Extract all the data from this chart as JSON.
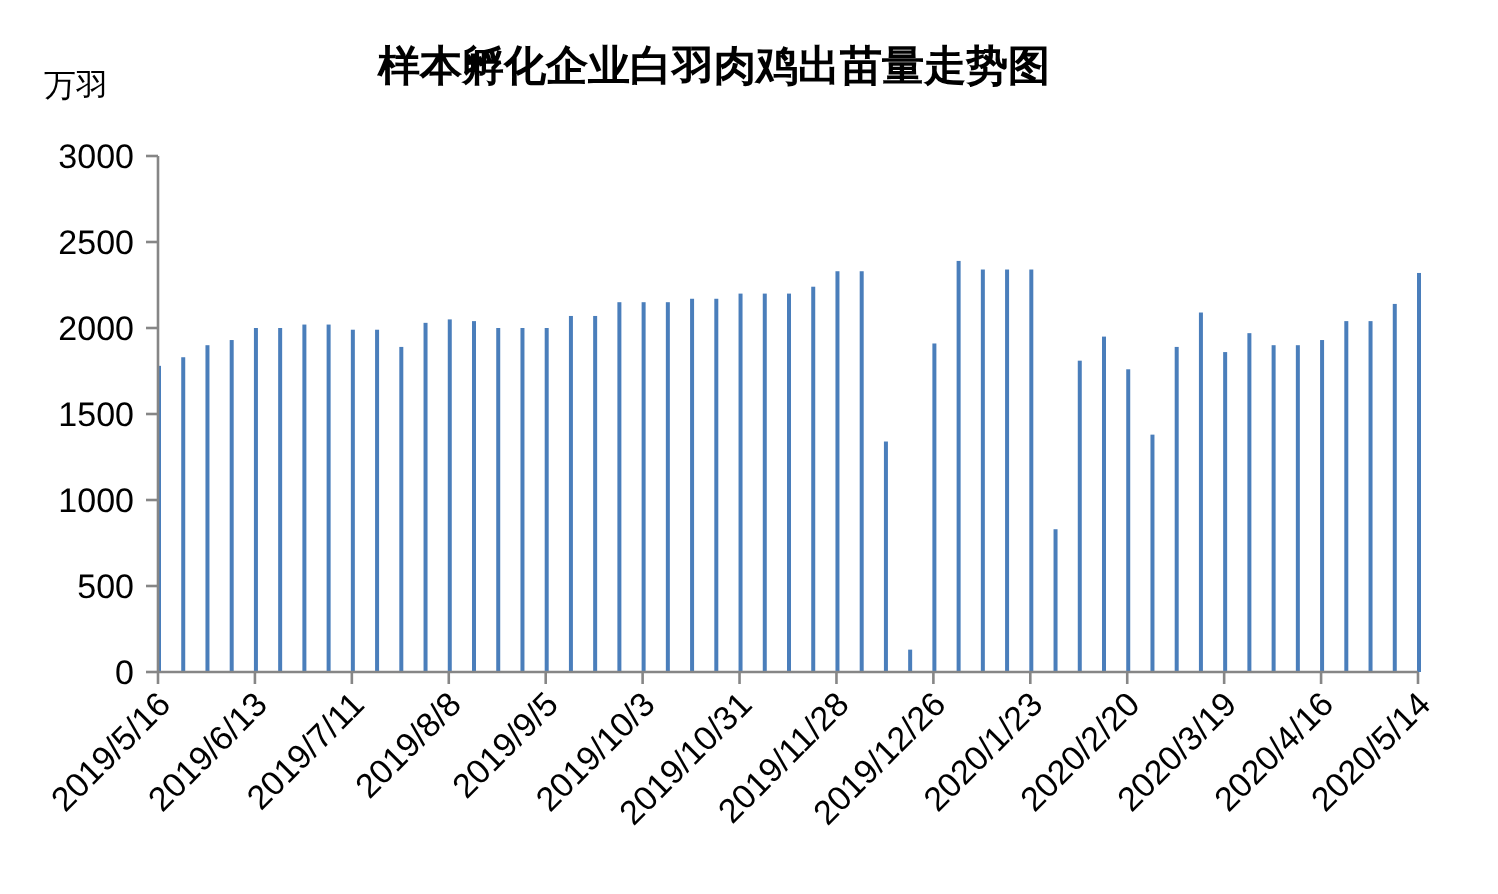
{
  "chart_data": {
    "type": "bar",
    "title": "样本孵化企业白羽肉鸡出苗量走势图",
    "ylabel": "万羽",
    "x": [
      "2019-05-16",
      "2019-05-23",
      "2019-05-30",
      "2019-06-06",
      "2019-06-13",
      "2019-06-20",
      "2019-06-27",
      "2019-07-04",
      "2019-07-11",
      "2019-07-18",
      "2019-07-25",
      "2019-08-01",
      "2019-08-08",
      "2019-08-15",
      "2019-08-22",
      "2019-08-29",
      "2019-09-05",
      "2019-09-12",
      "2019-09-19",
      "2019-09-26",
      "2019-10-03",
      "2019-10-10",
      "2019-10-17",
      "2019-10-24",
      "2019-10-31",
      "2019-11-07",
      "2019-11-14",
      "2019-11-21",
      "2019-11-28",
      "2019-12-05",
      "2019-12-12",
      "2019-12-19",
      "2019-12-26",
      "2020-01-02",
      "2020-01-09",
      "2020-01-16",
      "2020-01-23",
      "2020-01-30",
      "2020-02-06",
      "2020-02-13",
      "2020-02-20",
      "2020-02-27",
      "2020-03-05",
      "2020-03-12",
      "2020-03-19",
      "2020-03-26",
      "2020-04-02",
      "2020-04-09",
      "2020-04-16",
      "2020-04-23",
      "2020-04-30",
      "2020-05-07",
      "2020-05-14"
    ],
    "values": [
      1780,
      1830,
      1900,
      1930,
      2000,
      2000,
      2020,
      2020,
      1990,
      1990,
      1890,
      2030,
      2050,
      2040,
      2000,
      2000,
      2000,
      2070,
      2070,
      2150,
      2150,
      2150,
      2170,
      2170,
      2200,
      2200,
      2200,
      2240,
      2330,
      2330,
      1340,
      130,
      1910,
      2390,
      2340,
      2340,
      2340,
      830,
      1810,
      1950,
      1760,
      1380,
      1890,
      2090,
      1860,
      1970,
      1900,
      1900,
      1930,
      2040,
      2040,
      2140,
      2320
    ],
    "color": "#4a7ebb",
    "xlim": [
      "2019-05-16",
      "2020-05-14"
    ],
    "xticks": [
      {
        "value": "2019-05-16",
        "label": "2019/5/16"
      },
      {
        "value": "2019-06-13",
        "label": "2019/6/13"
      },
      {
        "value": "2019-07-11",
        "label": "2019/7/11"
      },
      {
        "value": "2019-08-08",
        "label": "2019/8/8"
      },
      {
        "value": "2019-09-05",
        "label": "2019/9/5"
      },
      {
        "value": "2019-10-03",
        "label": "2019/10/3"
      },
      {
        "value": "2019-10-31",
        "label": "2019/10/31"
      },
      {
        "value": "2019-11-28",
        "label": "2019/11/28"
      },
      {
        "value": "2019-12-26",
        "label": "2019/12/26"
      },
      {
        "value": "2020-01-23",
        "label": "2020/1/23"
      },
      {
        "value": "2020-02-20",
        "label": "2020/2/20"
      },
      {
        "value": "2020-03-19",
        "label": "2020/3/19"
      },
      {
        "value": "2020-04-16",
        "label": "2020/4/16"
      },
      {
        "value": "2020-05-14",
        "label": "2020/5/14"
      }
    ],
    "ylim": [
      0,
      3000
    ],
    "yticks": [
      0,
      500,
      1000,
      1500,
      2000,
      2500,
      3000
    ]
  }
}
